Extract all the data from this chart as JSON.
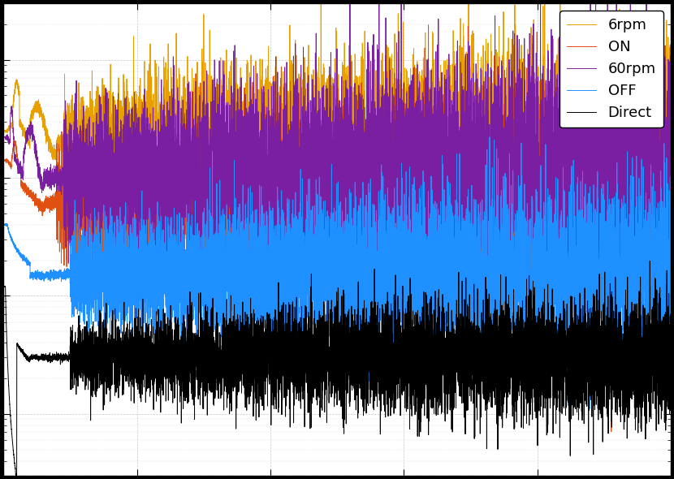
{
  "legend_labels": [
    "OFF",
    "ON",
    "6rpm",
    "60rpm",
    "Direct"
  ],
  "line_colors": [
    "#1e90ff",
    "#e05010",
    "#e8a000",
    "#7b1fa2",
    "#000000"
  ],
  "xlim": [
    0,
    500
  ],
  "background_color": "#ffffff",
  "outer_background": "#000000",
  "figsize": [
    8.3,
    5.9
  ],
  "dpi": 100,
  "grid_color": "#c8c8c8"
}
